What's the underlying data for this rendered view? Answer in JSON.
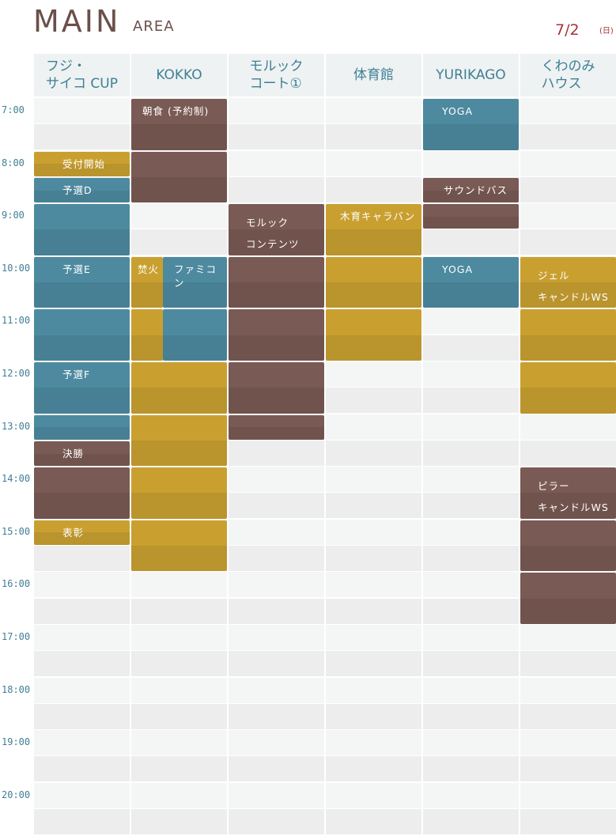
{
  "header": {
    "title": "MAIN",
    "subtitle": "AREA",
    "date": "7/2",
    "weekday": "(日)"
  },
  "columns": [
    {
      "name": "フジ・\nサイコ CUP"
    },
    {
      "name": "KOKKO"
    },
    {
      "name": "モルック\nコート①"
    },
    {
      "name": "体育館"
    },
    {
      "name": "YURIKAGO"
    },
    {
      "name": "くわのみ\nハウス"
    }
  ],
  "times": [
    "7:00",
    "8:00",
    "9:00",
    "10:00",
    "11:00",
    "12:00",
    "13:00",
    "14:00",
    "15:00",
    "16:00",
    "17:00",
    "18:00",
    "19:00",
    "20:00"
  ],
  "colors": {
    "brown": "#7a5a54",
    "blue": "#4d8aa0",
    "gold": "#c9a030",
    "header_text": "#3f7f95",
    "date_text": "#a8323a"
  },
  "events": [
    {
      "col": 0,
      "start": 8.0,
      "end": 8.5,
      "color": "gold",
      "label": "受付開始"
    },
    {
      "col": 0,
      "start": 8.5,
      "end": 9.0,
      "color": "blue",
      "label": "予選D"
    },
    {
      "col": 0,
      "start": 9.0,
      "end": 10.0,
      "color": "blue",
      "label": ""
    },
    {
      "col": 0,
      "start": 10.0,
      "end": 11.0,
      "color": "blue",
      "label": "予選E"
    },
    {
      "col": 0,
      "start": 11.0,
      "end": 12.0,
      "color": "blue",
      "label": ""
    },
    {
      "col": 0,
      "start": 12.0,
      "end": 13.0,
      "color": "blue",
      "label": "予選F"
    },
    {
      "col": 0,
      "start": 13.0,
      "end": 13.5,
      "color": "blue",
      "label": ""
    },
    {
      "col": 0,
      "start": 13.5,
      "end": 14.0,
      "color": "brown",
      "label": "決勝"
    },
    {
      "col": 0,
      "start": 14.0,
      "end": 15.0,
      "color": "brown",
      "label": ""
    },
    {
      "col": 0,
      "start": 15.0,
      "end": 15.5,
      "color": "gold",
      "label": "表彰"
    },
    {
      "col": 1,
      "start": 7.0,
      "end": 8.0,
      "color": "brown",
      "label": "朝食 (予約制)"
    },
    {
      "col": 1,
      "start": 8.0,
      "end": 9.0,
      "color": "brown",
      "label": ""
    },
    {
      "col": 1,
      "start": 10.0,
      "end": 11.0,
      "color": "gold",
      "label": "焚火",
      "narrow": "left"
    },
    {
      "col": 1,
      "start": 11.0,
      "end": 12.0,
      "color": "gold",
      "label": "",
      "narrow": "left"
    },
    {
      "col": 1,
      "start": 10.0,
      "end": 11.0,
      "color": "blue",
      "label": "ファミコン",
      "narrow": "right"
    },
    {
      "col": 1,
      "start": 11.0,
      "end": 12.0,
      "color": "blue",
      "label": "",
      "narrow": "right"
    },
    {
      "col": 1,
      "start": 12.0,
      "end": 13.0,
      "color": "gold",
      "label": ""
    },
    {
      "col": 1,
      "start": 13.0,
      "end": 14.0,
      "color": "gold",
      "label": ""
    },
    {
      "col": 1,
      "start": 14.0,
      "end": 15.0,
      "color": "gold",
      "label": ""
    },
    {
      "col": 1,
      "start": 15.0,
      "end": 16.0,
      "color": "gold",
      "label": ""
    },
    {
      "col": 2,
      "start": 9.0,
      "end": 10.0,
      "color": "brown",
      "label": "モルック\nコンテンツ"
    },
    {
      "col": 2,
      "start": 10.0,
      "end": 11.0,
      "color": "brown",
      "label": ""
    },
    {
      "col": 2,
      "start": 11.0,
      "end": 12.0,
      "color": "brown",
      "label": ""
    },
    {
      "col": 2,
      "start": 12.0,
      "end": 13.0,
      "color": "brown",
      "label": ""
    },
    {
      "col": 2,
      "start": 13.0,
      "end": 13.5,
      "color": "brown",
      "label": ""
    },
    {
      "col": 3,
      "start": 9.0,
      "end": 10.0,
      "color": "gold",
      "label": "木育キャラバン"
    },
    {
      "col": 3,
      "start": 10.0,
      "end": 11.0,
      "color": "gold",
      "label": ""
    },
    {
      "col": 3,
      "start": 11.0,
      "end": 12.0,
      "color": "gold",
      "label": ""
    },
    {
      "col": 4,
      "start": 7.0,
      "end": 8.0,
      "color": "blue",
      "label": "YOGA"
    },
    {
      "col": 4,
      "start": 8.5,
      "end": 9.0,
      "color": "brown",
      "label": "サウンドバス"
    },
    {
      "col": 4,
      "start": 9.0,
      "end": 9.5,
      "color": "brown",
      "label": ""
    },
    {
      "col": 4,
      "start": 10.0,
      "end": 11.0,
      "color": "blue",
      "label": "YOGA"
    },
    {
      "col": 5,
      "start": 10.0,
      "end": 11.0,
      "color": "gold",
      "label": "ジェル\nキャンドルWS"
    },
    {
      "col": 5,
      "start": 11.0,
      "end": 12.0,
      "color": "gold",
      "label": ""
    },
    {
      "col": 5,
      "start": 12.0,
      "end": 13.0,
      "color": "gold",
      "label": ""
    },
    {
      "col": 5,
      "start": 14.0,
      "end": 15.0,
      "color": "brown",
      "label": "ピラー\nキャンドルWS"
    },
    {
      "col": 5,
      "start": 15.0,
      "end": 16.0,
      "color": "brown",
      "label": ""
    },
    {
      "col": 5,
      "start": 16.0,
      "end": 17.0,
      "color": "brown",
      "label": ""
    }
  ]
}
